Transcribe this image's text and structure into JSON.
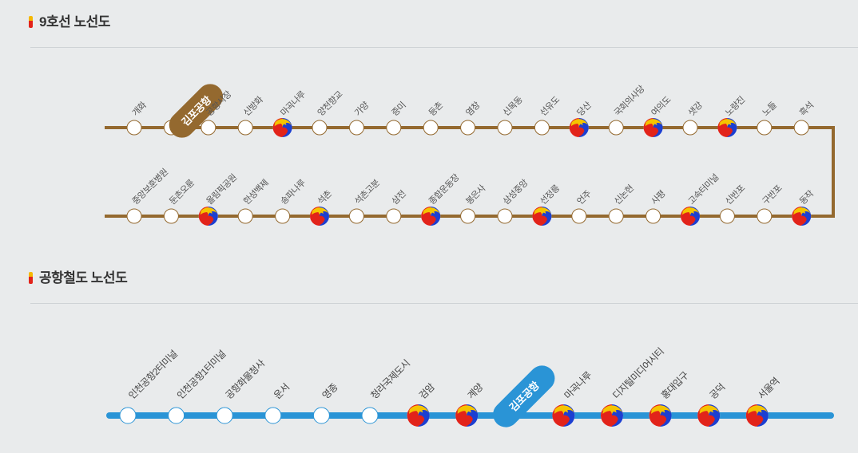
{
  "line9": {
    "title": "9호선 노선도",
    "color": "#94692f",
    "row1": [
      {
        "name": "개화",
        "transfer": false
      },
      {
        "name": "김포공항",
        "transfer": false,
        "highlight": true
      },
      {
        "name": "공항시장",
        "transfer": false
      },
      {
        "name": "신방화",
        "transfer": false
      },
      {
        "name": "마곡나루",
        "transfer": true
      },
      {
        "name": "양천향교",
        "transfer": false
      },
      {
        "name": "가양",
        "transfer": false
      },
      {
        "name": "증미",
        "transfer": false
      },
      {
        "name": "등촌",
        "transfer": false
      },
      {
        "name": "염창",
        "transfer": false
      },
      {
        "name": "신목동",
        "transfer": false
      },
      {
        "name": "선유도",
        "transfer": false
      },
      {
        "name": "당산",
        "transfer": true
      },
      {
        "name": "국회의사당",
        "transfer": false
      },
      {
        "name": "여의도",
        "transfer": true
      },
      {
        "name": "샛강",
        "transfer": false
      },
      {
        "name": "노량진",
        "transfer": true
      },
      {
        "name": "노들",
        "transfer": false
      },
      {
        "name": "흑석",
        "transfer": false
      }
    ],
    "row2": [
      {
        "name": "중앙보훈병원",
        "transfer": false
      },
      {
        "name": "둔촌오륜",
        "transfer": false
      },
      {
        "name": "올림픽공원",
        "transfer": true
      },
      {
        "name": "한성백제",
        "transfer": false
      },
      {
        "name": "송파나루",
        "transfer": false
      },
      {
        "name": "석촌",
        "transfer": true
      },
      {
        "name": "석촌고분",
        "transfer": false
      },
      {
        "name": "삼전",
        "transfer": false
      },
      {
        "name": "종합운동장",
        "transfer": true
      },
      {
        "name": "봉은사",
        "transfer": false
      },
      {
        "name": "삼성중앙",
        "transfer": false
      },
      {
        "name": "선정릉",
        "transfer": true
      },
      {
        "name": "언주",
        "transfer": false
      },
      {
        "name": "신논현",
        "transfer": false
      },
      {
        "name": "사평",
        "transfer": false
      },
      {
        "name": "고속터미널",
        "transfer": true
      },
      {
        "name": "신반포",
        "transfer": false
      },
      {
        "name": "구반포",
        "transfer": false
      },
      {
        "name": "동작",
        "transfer": true
      }
    ]
  },
  "arex": {
    "title": "공항철도 노선도",
    "color": "#2a94d6",
    "stations": [
      {
        "name": "인천공항2터미널",
        "transfer": false
      },
      {
        "name": "인천공항1터미널",
        "transfer": false
      },
      {
        "name": "공항화물청사",
        "transfer": false
      },
      {
        "name": "운서",
        "transfer": false
      },
      {
        "name": "영종",
        "transfer": false
      },
      {
        "name": "청라국제도시",
        "transfer": false
      },
      {
        "name": "검암",
        "transfer": true
      },
      {
        "name": "계양",
        "transfer": true
      },
      {
        "name": "김포공항",
        "transfer": false,
        "highlight": true
      },
      {
        "name": "마곡나루",
        "transfer": true
      },
      {
        "name": "디지털미디어시티",
        "transfer": true
      },
      {
        "name": "홍대입구",
        "transfer": true
      },
      {
        "name": "공덕",
        "transfer": true
      },
      {
        "name": "서울역",
        "transfer": true
      }
    ]
  },
  "icons": {
    "transfer": "transfer-taeguk-icon",
    "station": "station-circle-icon"
  },
  "transfer_colors": [
    "#e2231a",
    "#f5c400",
    "#1c3fd1"
  ]
}
